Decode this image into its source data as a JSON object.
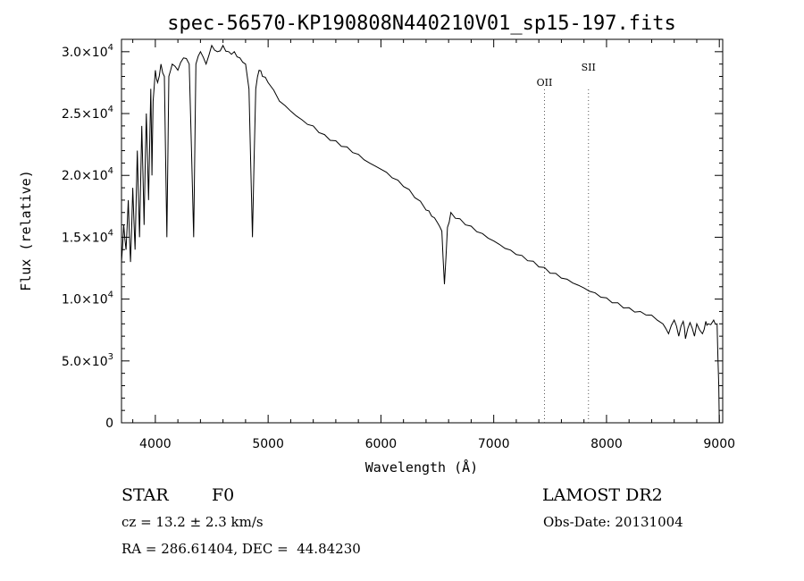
{
  "chart_data": {
    "type": "line",
    "title": "spec-56570-KP190808N440210V01_sp15-197.fits",
    "xlabel": "Wavelength (Å)",
    "ylabel": "Flux (relative)",
    "xlim": [
      3700,
      9030
    ],
    "ylim": [
      0,
      31000
    ],
    "x_ticks": [
      4000,
      5000,
      6000,
      7000,
      8000,
      9000
    ],
    "y_ticks": [
      {
        "value": 0,
        "mant": "0",
        "exp": ""
      },
      {
        "value": 5000,
        "mant": "5.0×10",
        "exp": "3"
      },
      {
        "value": 10000,
        "mant": "1.0×10",
        "exp": "4"
      },
      {
        "value": 15000,
        "mant": "1.5×10",
        "exp": "4"
      },
      {
        "value": 20000,
        "mant": "2.0×10",
        "exp": "4"
      },
      {
        "value": 25000,
        "mant": "2.5×10",
        "exp": "4"
      },
      {
        "value": 30000,
        "mant": "3.0×10",
        "exp": "4"
      }
    ],
    "grid": false,
    "series": [
      {
        "x": [
          3700,
          3720,
          3740,
          3760,
          3780,
          3800,
          3820,
          3840,
          3860,
          3880,
          3900,
          3920,
          3940,
          3960,
          3970,
          3980,
          4000,
          4020,
          4050,
          4080,
          4102,
          4120,
          4150,
          4200,
          4250,
          4300,
          4340,
          4360,
          4400,
          4450,
          4500,
          4550,
          4600,
          4650,
          4700,
          4750,
          4800,
          4830,
          4861,
          4890,
          4920,
          4950,
          5000,
          5100,
          5200,
          5300,
          5400,
          5500,
          5600,
          5700,
          5800,
          5900,
          6000,
          6100,
          6200,
          6300,
          6400,
          6450,
          6500,
          6540,
          6563,
          6590,
          6620,
          6700,
          6800,
          6900,
          7000,
          7100,
          7200,
          7300,
          7400,
          7500,
          7600,
          7700,
          7800,
          7900,
          8000,
          8100,
          8200,
          8300,
          8400,
          8500,
          8550,
          8600,
          8640,
          8680,
          8700,
          8740,
          8780,
          8800,
          8850,
          8880,
          8900,
          8950,
          8980,
          8995,
          9000
        ],
        "y": [
          13000,
          16000,
          14000,
          18000,
          13000,
          19000,
          14000,
          22000,
          15000,
          24000,
          16000,
          25000,
          18000,
          27000,
          20000,
          26000,
          28500,
          27500,
          29000,
          28000,
          15000,
          28000,
          29000,
          28500,
          29500,
          29000,
          15000,
          29000,
          30000,
          29000,
          30500,
          30000,
          30500,
          30000,
          30000,
          29500,
          29000,
          27000,
          15000,
          27000,
          28500,
          28000,
          27500,
          26000,
          25200,
          24500,
          24000,
          23300,
          22800,
          22300,
          21700,
          21000,
          20500,
          19800,
          19100,
          18200,
          17200,
          16700,
          16200,
          15500,
          11200,
          15800,
          17000,
          16500,
          15900,
          15300,
          14700,
          14100,
          13600,
          13100,
          12600,
          12100,
          11700,
          11300,
          10900,
          10500,
          10100,
          9700,
          9300,
          9000,
          8700,
          8000,
          7200,
          8300,
          7000,
          8200,
          6800,
          8100,
          7000,
          8000,
          7200,
          8200,
          8000,
          8300,
          8000,
          3000,
          0
        ]
      }
    ],
    "annotations": [
      {
        "label": "OII",
        "x": 7450
      },
      {
        "label": "SII",
        "x": 7840
      }
    ]
  },
  "info": {
    "class_label": "STAR",
    "subclass": "F0",
    "survey": "LAMOST DR2",
    "cz": "cz = 13.2 ± 2.3 km/s",
    "obs_date": "Obs-Date: 20131004",
    "coords": "RA = 286.61404, DEC =  44.84230"
  }
}
